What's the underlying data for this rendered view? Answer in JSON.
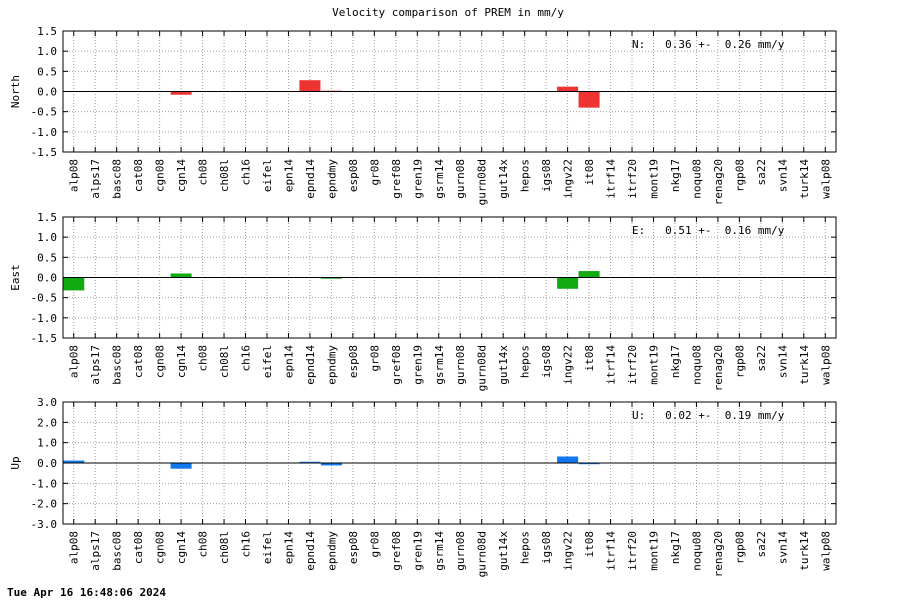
{
  "chart_data": {
    "title": "Velocity comparison of PREM in mm/y",
    "categories": [
      "alp08",
      "alps17",
      "basc08",
      "cat08",
      "cgn08",
      "cgn14",
      "ch08",
      "ch08l",
      "ch16",
      "eifel",
      "epn14",
      "epnd14",
      "epndmy",
      "esp08",
      "gr08",
      "gref08",
      "gren19",
      "gsrm14",
      "gurn08",
      "gurn08d",
      "gut14x",
      "hepos",
      "igs08",
      "ingv22",
      "it08",
      "itrf14",
      "itrf20",
      "mont19",
      "nkg17",
      "noqu08",
      "renag20",
      "rgp08",
      "sa22",
      "svn14",
      "turk14",
      "walp08"
    ],
    "panels": [
      {
        "type": "bar",
        "ylabel": "North",
        "ylim": [
          -1.5,
          1.5
        ],
        "yticks": [
          1.5,
          1.0,
          0.5,
          0.0,
          -0.5,
          -1.0,
          -1.5
        ],
        "ytick_labels": [
          "1.5",
          "1.0",
          "0.5",
          "0.0",
          "-0.5",
          "-1.0",
          "-1.5"
        ],
        "color": "#ee3333",
        "stat": "N:   0.36 +-  0.26 mm/y",
        "values": [
          0,
          0,
          0,
          0,
          0,
          -0.08,
          0,
          0,
          0,
          0,
          0,
          0.28,
          0.02,
          0,
          0,
          0,
          0,
          0,
          0,
          0,
          0,
          0,
          0,
          0.12,
          -0.4,
          0,
          0,
          0,
          0,
          0,
          0,
          0,
          0,
          0,
          0,
          0
        ]
      },
      {
        "type": "bar",
        "ylabel": "East",
        "ylim": [
          -1.5,
          1.5
        ],
        "yticks": [
          1.5,
          1.0,
          0.5,
          0.0,
          -0.5,
          -1.0,
          -1.5
        ],
        "ytick_labels": [
          "1.5",
          "1.0",
          "0.5",
          "0.0",
          "-0.5",
          "-1.0",
          "-1.5"
        ],
        "color": "#11aa11",
        "stat": "E:   0.51 +-  0.16 mm/y",
        "values": [
          -0.32,
          0,
          0,
          0,
          0,
          0.1,
          0,
          0,
          0,
          0,
          0,
          0,
          -0.03,
          0,
          0,
          0,
          0,
          0,
          0,
          0,
          0,
          0,
          0,
          -0.28,
          0.16,
          0,
          0,
          0,
          0,
          0,
          0,
          0,
          0,
          0,
          0,
          0
        ]
      },
      {
        "type": "bar",
        "ylabel": "Up",
        "ylim": [
          -3.0,
          3.0
        ],
        "yticks": [
          3.0,
          2.0,
          1.0,
          0.0,
          -1.0,
          -2.0,
          -3.0
        ],
        "ytick_labels": [
          "3.0",
          "2.0",
          "1.0",
          "0.0",
          "-1.0",
          "-2.0",
          "-3.0"
        ],
        "color": "#1177ee",
        "stat": "U:   0.02 +-  0.19 mm/y",
        "values": [
          0.12,
          0,
          0,
          0,
          0,
          -0.28,
          0,
          0,
          0,
          0,
          0,
          0.06,
          -0.12,
          0,
          0,
          0,
          0,
          0,
          0,
          0,
          0,
          0,
          0,
          0.32,
          -0.06,
          0,
          0,
          0,
          0,
          0,
          0,
          0,
          0,
          0,
          0,
          0
        ]
      }
    ],
    "grid": true
  },
  "footer": {
    "timestamp": "Tue Apr 16 16:48:06 2024"
  }
}
